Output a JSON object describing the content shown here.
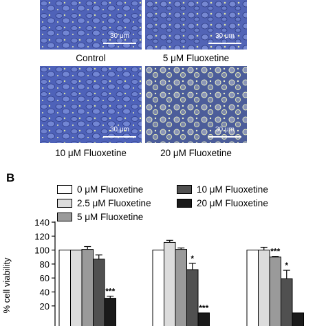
{
  "panel_a": {
    "images": [
      {
        "caption": "Control",
        "scale": "30 μm"
      },
      {
        "caption": "5 μM Fluoxetine",
        "scale": "30 μm"
      },
      {
        "caption": "10 μM Fluoxetine",
        "scale": "30 μm"
      },
      {
        "caption": "20 μM Fluoxetine",
        "scale": "30 μm"
      }
    ]
  },
  "panel_b": {
    "letter": "B",
    "legend": [
      {
        "label": "0 μM Fluoxetine",
        "color": "#ffffff"
      },
      {
        "label": "2.5 μM Fluoxetine",
        "color": "#dcdcdc"
      },
      {
        "label": "5 μM Fluoxetine",
        "color": "#9a9a9a"
      },
      {
        "label": "10 μM Fluoxetine",
        "color": "#505050"
      },
      {
        "label": "20 μM Fluoxetine",
        "color": "#1a1a1a"
      }
    ]
  },
  "chart_data": {
    "type": "bar",
    "ylabel": "% cell viability",
    "yticks": [
      20,
      40,
      60,
      80,
      100,
      120,
      140
    ],
    "ylim": [
      10,
      140
    ],
    "groups": [
      {
        "values": [
          100,
          100,
          101,
          87,
          31
        ],
        "errors": [
          0,
          0,
          4,
          6,
          3
        ],
        "annotations": [
          "",
          "",
          "",
          "",
          "***"
        ]
      },
      {
        "values": [
          100,
          111,
          101,
          72,
          10
        ],
        "errors": [
          0,
          3,
          2,
          9,
          0
        ],
        "annotations": [
          "",
          "",
          "",
          "*",
          "***"
        ]
      },
      {
        "values": [
          100,
          100,
          90,
          59,
          10
        ],
        "errors": [
          0,
          4,
          1,
          12,
          0
        ],
        "annotations": [
          "",
          "",
          "***",
          "*",
          ""
        ]
      }
    ]
  }
}
